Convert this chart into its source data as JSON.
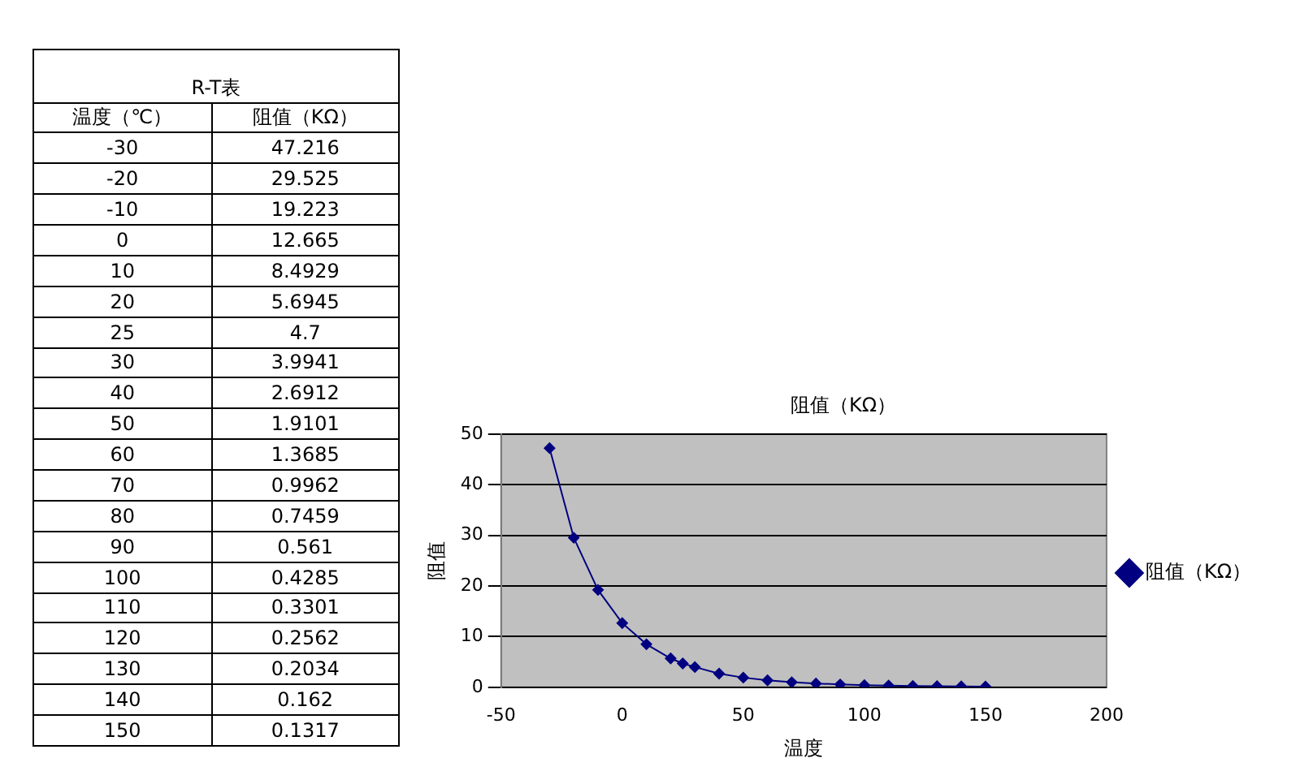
{
  "chart_data": [
    {
      "type": "other",
      "title": "R-T表",
      "annotations": [
        "温度（℃）",
        "阻值（KΩ）",
        "-30",
        "47.216",
        "-20",
        "29.525",
        "-10",
        "19.223",
        "0",
        "12.665",
        "10",
        "8.4929",
        "20",
        "5.6945",
        "25",
        "4.7",
        "30",
        "3.9941",
        "40",
        "2.6912",
        "50",
        "1.9101",
        "60",
        "1.3685",
        "70",
        "0.9962",
        "80",
        "0.7459",
        "90",
        "0.561",
        "100",
        "0.4285",
        "110",
        "0.3301",
        "120",
        "0.2562",
        "130",
        "0.2034",
        "140",
        "0.162",
        "150",
        "0.1317"
      ]
    },
    {
      "type": "line",
      "title": "阻值（KΩ）",
      "xlabel": "温度",
      "ylabel": "阻值",
      "x": [
        -30,
        -20,
        -10,
        0,
        10,
        20,
        25,
        30,
        40,
        50,
        60,
        70,
        80,
        90,
        100,
        110,
        120,
        130,
        140,
        150
      ],
      "series": [
        {
          "name": "阻值（KΩ）",
          "color": "#000080",
          "values": [
            47.216,
            29.525,
            19.223,
            12.665,
            8.4929,
            5.6945,
            4.7,
            3.9941,
            2.6912,
            1.9101,
            1.3685,
            0.9962,
            0.7459,
            0.561,
            0.4285,
            0.3301,
            0.2562,
            0.2034,
            0.162,
            0.1317
          ]
        }
      ],
      "xlim": [
        -50,
        200
      ],
      "xticks": [
        -50,
        0,
        50,
        100,
        150,
        200
      ],
      "ylim": [
        0,
        50
      ],
      "yticks": [
        0,
        10,
        20,
        30,
        40,
        50
      ],
      "grid": "y",
      "legend": "right",
      "marker": "diamond",
      "line_style": "solid"
    }
  ]
}
